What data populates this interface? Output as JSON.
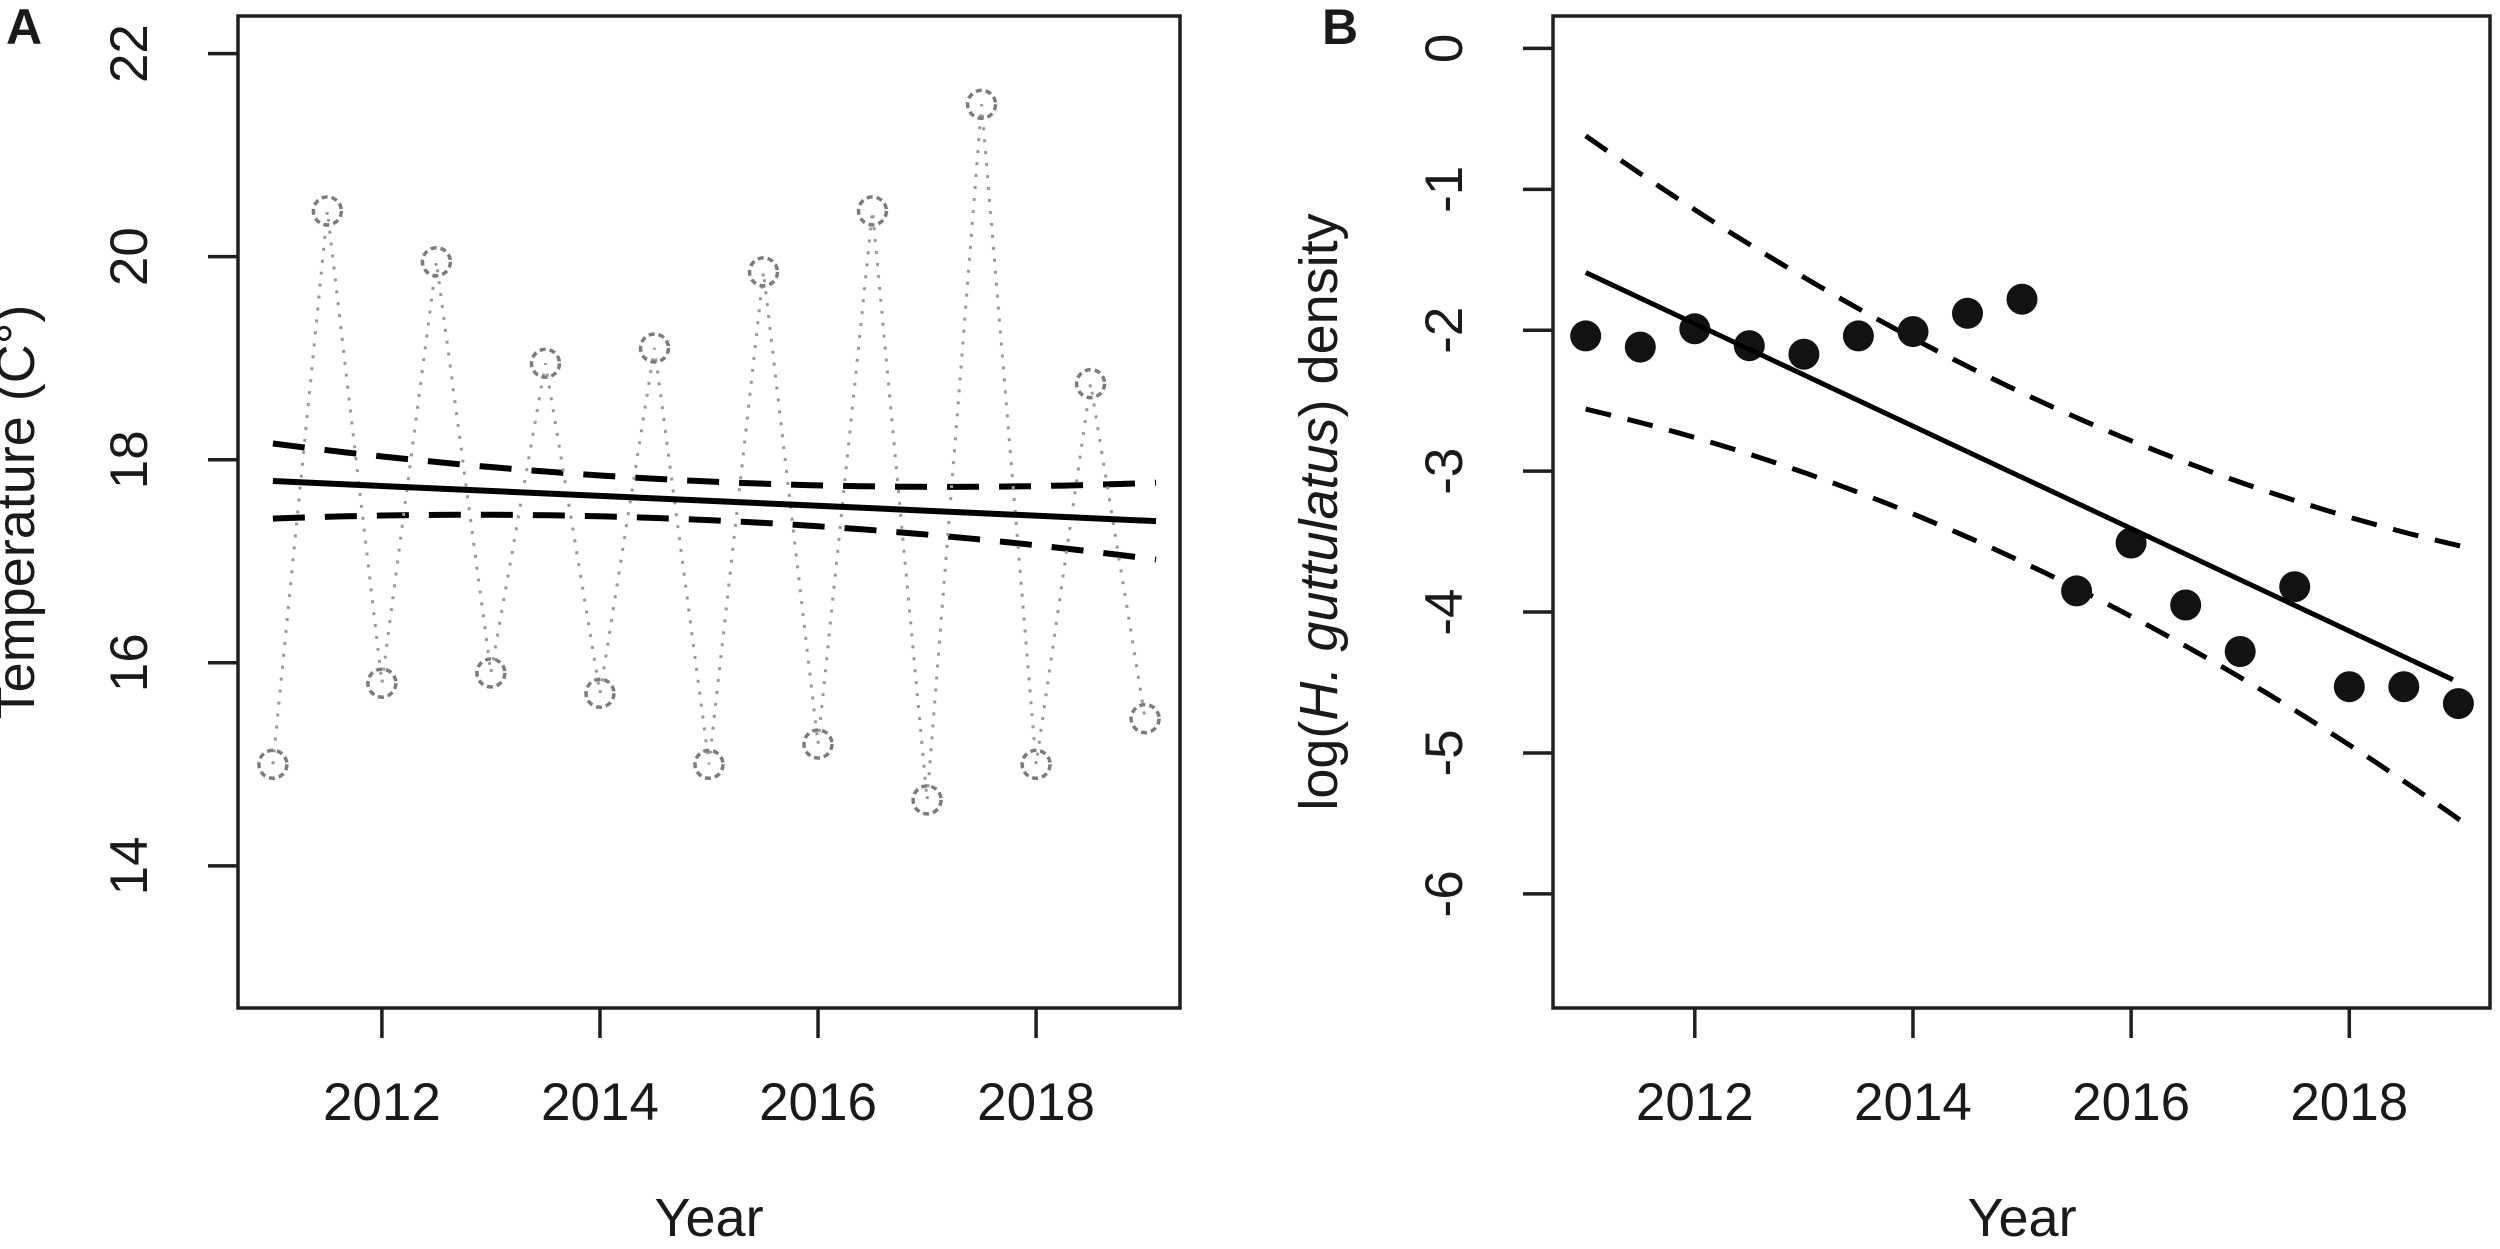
{
  "figure": {
    "background": "#ffffff",
    "panel_letters": [
      "A",
      "B"
    ]
  },
  "colors": {
    "axis": "#1f1f1f",
    "text": "#1a1a1a",
    "trend_line": "#000000",
    "ci_line": "#000000",
    "seasonal_line": "#9a9a9a",
    "open_marker_stroke": "#7c7c7c",
    "filled_marker": "#121212"
  },
  "chart_data": [
    {
      "panel_label": "A",
      "type": "line",
      "title": "",
      "xlabel": "Year",
      "ylabel_parts": [
        {
          "text": "Temperature (C°)",
          "italic": false
        }
      ],
      "xlim": [
        2010.68,
        2019.32
      ],
      "ylim": [
        12.6,
        22.37
      ],
      "x_ticks": [
        2012,
        2014,
        2016,
        2018
      ],
      "y_ticks": [
        14,
        16,
        18,
        20,
        22
      ],
      "grid": false,
      "legend": "none",
      "series": [
        {
          "name": "observed seasonal temperature",
          "marker": "open-circle",
          "line": "dotted",
          "x": [
            2011,
            2011.5,
            2012,
            2012.5,
            2013,
            2013.5,
            2014,
            2014.5,
            2015,
            2015.5,
            2016,
            2016.5,
            2017,
            2017.5,
            2018,
            2018.5,
            2019
          ],
          "y": [
            15.0,
            20.45,
            15.8,
            19.95,
            15.9,
            18.95,
            15.7,
            19.1,
            15.0,
            19.85,
            15.2,
            20.45,
            14.65,
            21.5,
            15.0,
            18.75,
            15.45
          ]
        },
        {
          "name": "fitted linear trend",
          "marker": "none",
          "line": "solid",
          "x": [
            2011,
            2019.1
          ],
          "y": [
            17.79,
            17.395
          ]
        }
      ],
      "confidence_band": {
        "x_range": [
          2011,
          2019.1
        ],
        "center_x": 2015,
        "half_span_years": 4,
        "halfwidth_mid": 0.19,
        "halfwidth_end": 0.37,
        "style": "dashed"
      }
    },
    {
      "panel_label": "B",
      "type": "scatter",
      "title": "",
      "xlabel": "Year",
      "ylabel_parts": [
        {
          "text": "log(",
          "italic": false
        },
        {
          "text": "H. guttulatus",
          "italic": true
        },
        {
          "text": ") density",
          "italic": false
        }
      ],
      "xlim": [
        2010.7,
        2019.29
      ],
      "ylim": [
        -6.81,
        0.23
      ],
      "x_ticks": [
        2012,
        2014,
        2016,
        2018
      ],
      "y_ticks": [
        0,
        -1,
        -2,
        -3,
        -4,
        -5,
        -6
      ],
      "grid": false,
      "legend": "none",
      "series": [
        {
          "name": "observed log density",
          "marker": "filled-circle",
          "line": "none",
          "x": [
            2011,
            2011.5,
            2012,
            2012.5,
            2013,
            2013.5,
            2014,
            2014.5,
            2015,
            2015.5,
            2016,
            2016.5,
            2017,
            2017.5,
            2018,
            2018.5,
            2019
          ],
          "y": [
            -2.04,
            -2.12,
            -1.99,
            -2.11,
            -2.17,
            -2.04,
            -2.01,
            -1.88,
            -1.78,
            -3.85,
            -3.51,
            -3.95,
            -4.28,
            -3.82,
            -4.53,
            -4.53,
            -4.65
          ]
        },
        {
          "name": "fitted linear trend",
          "marker": "none",
          "line": "solid",
          "x": [
            2011,
            2018.95
          ],
          "y": [
            -1.59,
            -4.48
          ]
        }
      ],
      "confidence_band": {
        "x_range": [
          2011,
          2019.1
        ],
        "center_x": 2015,
        "half_span_years": 4,
        "halfwidth_mid": 0.6,
        "halfwidth_end": 0.97,
        "style": "dashed"
      }
    }
  ]
}
